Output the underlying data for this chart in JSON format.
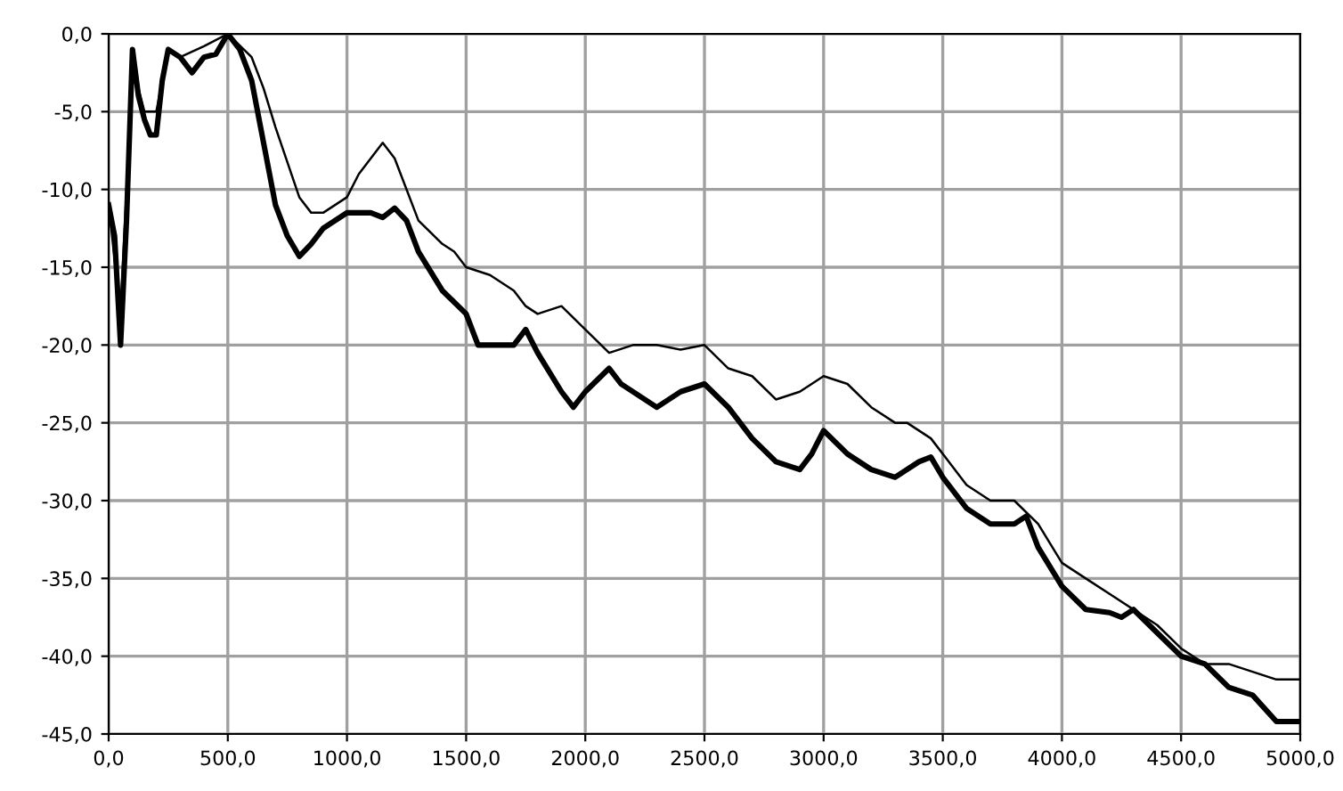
{
  "chart_data": {
    "type": "line",
    "xlim": [
      0,
      5000
    ],
    "ylim": [
      -45,
      0
    ],
    "xticks": [
      {
        "value": 0,
        "label": "0,0"
      },
      {
        "value": 500,
        "label": "500,0"
      },
      {
        "value": 1000,
        "label": "1000,0"
      },
      {
        "value": 1500,
        "label": "1500,0"
      },
      {
        "value": 2000,
        "label": "2000,0"
      },
      {
        "value": 2500,
        "label": "2500,0"
      },
      {
        "value": 3000,
        "label": "3000,0"
      },
      {
        "value": 3500,
        "label": "3500,0"
      },
      {
        "value": 4000,
        "label": "4000,0"
      },
      {
        "value": 4500,
        "label": "4500,0"
      },
      {
        "value": 5000,
        "label": "5000,0"
      }
    ],
    "yticks": [
      {
        "value": 0,
        "label": "0,0"
      },
      {
        "value": -5,
        "label": "-5,0"
      },
      {
        "value": -10,
        "label": "-10,0"
      },
      {
        "value": -15,
        "label": "-15,0"
      },
      {
        "value": -20,
        "label": "-20,0"
      },
      {
        "value": -25,
        "label": "-25,0"
      },
      {
        "value": -30,
        "label": "-30,0"
      },
      {
        "value": -35,
        "label": "-35,0"
      },
      {
        "value": -40,
        "label": "-40,0"
      },
      {
        "value": -45,
        "label": "-45,0"
      }
    ],
    "grid": true,
    "line_style": "solid",
    "series": [
      {
        "color": "#000000",
        "x": [
          0,
          50,
          100,
          150,
          200,
          250,
          300,
          400,
          500,
          600,
          650,
          700,
          800,
          850,
          900,
          1000,
          1050,
          1150,
          1200,
          1300,
          1400,
          1450,
          1500,
          1600,
          1700,
          1750,
          1800,
          1900,
          2000,
          2100,
          2200,
          2300,
          2400,
          2500,
          2600,
          2700,
          2800,
          2900,
          3000,
          3100,
          3200,
          3300,
          3350,
          3450,
          3500,
          3600,
          3700,
          3800,
          3900,
          4000,
          4100,
          4200,
          4300,
          4400,
          4500,
          4600,
          4700,
          4800,
          4900,
          5000
        ],
        "values": [
          -11,
          -18,
          -2,
          -5,
          -5,
          -1,
          -1.5,
          -0.8,
          0,
          -1.5,
          -3.5,
          -6,
          -10.5,
          -11.5,
          -11.5,
          -10.5,
          -9,
          -7,
          -8,
          -12,
          -13.5,
          -14,
          -15,
          -15.5,
          -16.5,
          -17.5,
          -18,
          -17.5,
          -19,
          -20.5,
          -20,
          -20,
          -20.3,
          -20,
          -21.5,
          -22,
          -23.5,
          -23,
          -22,
          -22.5,
          -24,
          -25,
          -25,
          -26,
          -27,
          -29,
          -30,
          -30,
          -31.5,
          -34,
          -35,
          -36,
          -37,
          -38,
          -39.5,
          -40.5,
          -40.5,
          -41,
          -41.5,
          -41.5
        ]
      },
      {
        "color": "#000000",
        "x": [
          0,
          25,
          50,
          75,
          100,
          125,
          150,
          175,
          200,
          225,
          250,
          300,
          350,
          400,
          450,
          500,
          550,
          600,
          650,
          700,
          750,
          800,
          850,
          900,
          1000,
          1100,
          1150,
          1200,
          1250,
          1300,
          1400,
          1500,
          1550,
          1600,
          1700,
          1750,
          1800,
          1900,
          1950,
          2000,
          2100,
          2150,
          2200,
          2300,
          2400,
          2500,
          2600,
          2700,
          2800,
          2900,
          2950,
          3000,
          3100,
          3200,
          3300,
          3400,
          3450,
          3500,
          3600,
          3700,
          3800,
          3850,
          3900,
          4000,
          4100,
          4200,
          4250,
          4300,
          4400,
          4500,
          4600,
          4700,
          4800,
          4900,
          5000
        ],
        "values": [
          -11,
          -13,
          -20,
          -12,
          -1,
          -4,
          -5.5,
          -6.5,
          -6.5,
          -3,
          -1,
          -1.5,
          -2.5,
          -1.5,
          -1.3,
          0,
          -1,
          -3,
          -7,
          -11,
          -13,
          -14.3,
          -13.5,
          -12.5,
          -11.5,
          -11.5,
          -11.8,
          -11.2,
          -12,
          -14,
          -16.5,
          -18,
          -20,
          -20,
          -20,
          -19,
          -20.5,
          -23,
          -24,
          -23,
          -21.5,
          -22.5,
          -23,
          -24,
          -23,
          -22.5,
          -24,
          -26,
          -27.5,
          -28,
          -27,
          -25.5,
          -27,
          -28,
          -28.5,
          -27.5,
          -27.2,
          -28.5,
          -30.5,
          -31.5,
          -31.5,
          -31,
          -33,
          -35.5,
          -37,
          -37.2,
          -37.5,
          -37,
          -38.5,
          -40,
          -40.5,
          -42,
          -42.5,
          -44.2,
          -44.2
        ]
      }
    ]
  }
}
